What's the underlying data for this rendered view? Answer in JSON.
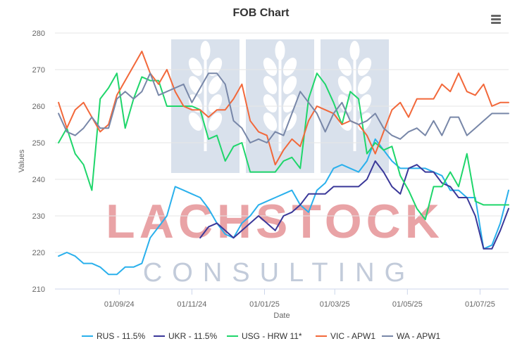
{
  "chart_data": {
    "type": "line",
    "title": "FOB Chart",
    "xlabel": "Date",
    "ylabel": "Values",
    "ylim": [
      210,
      280
    ],
    "yticks": [
      210,
      220,
      230,
      240,
      250,
      260,
      270,
      280
    ],
    "xlim": [
      "2024-07-09",
      "2025-07-25"
    ],
    "xticks": [
      "2024-09-01",
      "2024-11-01",
      "2025-01-01",
      "2025-03-01",
      "2025-05-01",
      "2025-07-01"
    ],
    "xtick_labels": [
      "01/09/24",
      "01/11/24",
      "01/01/25",
      "01/03/25",
      "01/05/25",
      "01/07/25"
    ],
    "grid": "horizontal",
    "legend_position": "bottom",
    "watermark": {
      "line1": "LACHSTOCK",
      "line2": "CONSULTING"
    },
    "series": [
      {
        "name": "RUS - 11.5%",
        "color": "#2ab0ec",
        "points": [
          [
            "2024-07-12",
            219
          ],
          [
            "2024-07-19",
            220
          ],
          [
            "2024-07-26",
            219
          ],
          [
            "2024-08-02",
            217
          ],
          [
            "2024-08-09",
            217
          ],
          [
            "2024-08-16",
            216
          ],
          [
            "2024-08-23",
            214
          ],
          [
            "2024-08-30",
            214
          ],
          [
            "2024-09-06",
            216
          ],
          [
            "2024-09-13",
            216
          ],
          [
            "2024-09-20",
            217
          ],
          [
            "2024-09-27",
            224
          ],
          [
            "2024-10-04",
            227
          ],
          [
            "2024-10-11",
            230
          ],
          [
            "2024-10-18",
            238
          ],
          [
            "2024-10-25",
            237
          ],
          [
            "2024-11-01",
            236
          ],
          [
            "2024-11-08",
            235
          ],
          [
            "2024-11-15",
            232
          ],
          [
            "2024-11-22",
            228
          ],
          [
            "2024-11-29",
            225
          ],
          [
            "2024-12-06",
            224
          ],
          [
            "2024-12-13",
            228
          ],
          [
            "2024-12-20",
            230
          ],
          [
            "2024-12-27",
            233
          ],
          [
            "2025-01-03",
            234
          ],
          [
            "2025-01-10",
            235
          ],
          [
            "2025-01-17",
            236
          ],
          [
            "2025-01-24",
            237
          ],
          [
            "2025-01-31",
            233
          ],
          [
            "2025-02-07",
            231
          ],
          [
            "2025-02-14",
            237
          ],
          [
            "2025-02-21",
            239
          ],
          [
            "2025-02-28",
            243
          ],
          [
            "2025-03-07",
            244
          ],
          [
            "2025-03-14",
            243
          ],
          [
            "2025-03-21",
            242
          ],
          [
            "2025-03-28",
            245
          ],
          [
            "2025-04-04",
            251
          ],
          [
            "2025-04-11",
            248
          ],
          [
            "2025-04-18",
            245
          ],
          [
            "2025-04-25",
            243
          ],
          [
            "2025-05-02",
            243
          ],
          [
            "2025-05-09",
            243
          ],
          [
            "2025-05-16",
            243
          ],
          [
            "2025-05-23",
            242
          ],
          [
            "2025-05-30",
            241
          ],
          [
            "2025-06-06",
            237
          ],
          [
            "2025-06-13",
            237
          ],
          [
            "2025-06-20",
            235
          ],
          [
            "2025-06-27",
            235
          ],
          [
            "2025-07-04",
            221
          ],
          [
            "2025-07-11",
            222
          ],
          [
            "2025-07-18",
            228
          ],
          [
            "2025-07-25",
            237
          ]
        ]
      },
      {
        "name": "UKR - 11.5%",
        "color": "#3a3899",
        "points": [
          [
            "2024-11-08",
            224
          ],
          [
            "2024-11-15",
            227
          ],
          [
            "2024-11-22",
            228
          ],
          [
            "2024-11-29",
            226
          ],
          [
            "2024-12-06",
            224
          ],
          [
            "2024-12-13",
            226
          ],
          [
            "2024-12-20",
            228
          ],
          [
            "2024-12-27",
            230
          ],
          [
            "2025-01-03",
            228
          ],
          [
            "2025-01-10",
            226
          ],
          [
            "2025-01-17",
            230
          ],
          [
            "2025-01-24",
            231
          ],
          [
            "2025-01-31",
            233
          ],
          [
            "2025-02-07",
            236
          ],
          [
            "2025-02-14",
            236
          ],
          [
            "2025-02-21",
            236
          ],
          [
            "2025-02-28",
            238
          ],
          [
            "2025-03-07",
            238
          ],
          [
            "2025-03-14",
            238
          ],
          [
            "2025-03-21",
            238
          ],
          [
            "2025-03-28",
            240
          ],
          [
            "2025-04-04",
            245
          ],
          [
            "2025-04-11",
            242
          ],
          [
            "2025-04-18",
            238
          ],
          [
            "2025-04-25",
            236
          ],
          [
            "2025-05-02",
            243
          ],
          [
            "2025-05-09",
            244
          ],
          [
            "2025-05-16",
            242
          ],
          [
            "2025-05-23",
            242
          ],
          [
            "2025-05-30",
            239
          ],
          [
            "2025-06-06",
            238
          ],
          [
            "2025-06-13",
            235
          ],
          [
            "2025-06-20",
            235
          ],
          [
            "2025-06-27",
            230
          ],
          [
            "2025-07-04",
            221
          ],
          [
            "2025-07-11",
            221
          ],
          [
            "2025-07-18",
            226
          ],
          [
            "2025-07-25",
            232
          ]
        ]
      },
      {
        "name": "USG - HRW 11*",
        "color": "#1fd66b",
        "points": [
          [
            "2024-07-12",
            250
          ],
          [
            "2024-07-19",
            254
          ],
          [
            "2024-07-26",
            247
          ],
          [
            "2024-08-02",
            244
          ],
          [
            "2024-08-09",
            237
          ],
          [
            "2024-08-16",
            262
          ],
          [
            "2024-08-23",
            265
          ],
          [
            "2024-08-30",
            269
          ],
          [
            "2024-09-06",
            254
          ],
          [
            "2024-09-13",
            262
          ],
          [
            "2024-09-20",
            268
          ],
          [
            "2024-09-27",
            267
          ],
          [
            "2024-10-04",
            267
          ],
          [
            "2024-10-11",
            260
          ],
          [
            "2024-10-18",
            260
          ],
          [
            "2024-10-25",
            260
          ],
          [
            "2024-11-01",
            260
          ],
          [
            "2024-11-08",
            259
          ],
          [
            "2024-11-15",
            251
          ],
          [
            "2024-11-22",
            252
          ],
          [
            "2024-11-29",
            245
          ],
          [
            "2024-12-06",
            249
          ],
          [
            "2024-12-13",
            250
          ],
          [
            "2024-12-20",
            242
          ],
          [
            "2024-12-27",
            242
          ],
          [
            "2025-01-03",
            242
          ],
          [
            "2025-01-10",
            242
          ],
          [
            "2025-01-17",
            245
          ],
          [
            "2025-01-24",
            246
          ],
          [
            "2025-01-31",
            243
          ],
          [
            "2025-02-07",
            262
          ],
          [
            "2025-02-14",
            269
          ],
          [
            "2025-02-21",
            266
          ],
          [
            "2025-02-28",
            261
          ],
          [
            "2025-03-07",
            255
          ],
          [
            "2025-03-14",
            264
          ],
          [
            "2025-03-21",
            262
          ],
          [
            "2025-03-28",
            247
          ],
          [
            "2025-04-04",
            250
          ],
          [
            "2025-04-11",
            248
          ],
          [
            "2025-04-18",
            249
          ],
          [
            "2025-04-25",
            241
          ],
          [
            "2025-05-02",
            237
          ],
          [
            "2025-05-09",
            232
          ],
          [
            "2025-05-16",
            229
          ],
          [
            "2025-05-23",
            238
          ],
          [
            "2025-05-30",
            238
          ],
          [
            "2025-06-06",
            242
          ],
          [
            "2025-06-13",
            238
          ],
          [
            "2025-06-20",
            247
          ],
          [
            "2025-06-27",
            234
          ],
          [
            "2025-07-04",
            233
          ],
          [
            "2025-07-11",
            233
          ],
          [
            "2025-07-18",
            233
          ],
          [
            "2025-07-25",
            233
          ]
        ]
      },
      {
        "name": "VIC - APW1",
        "color": "#f2683a",
        "points": [
          [
            "2024-07-12",
            261
          ],
          [
            "2024-07-19",
            254
          ],
          [
            "2024-07-26",
            259
          ],
          [
            "2024-08-02",
            261
          ],
          [
            "2024-08-09",
            257
          ],
          [
            "2024-08-16",
            253
          ],
          [
            "2024-08-23",
            255
          ],
          [
            "2024-08-30",
            263
          ],
          [
            "2024-09-06",
            267
          ],
          [
            "2024-09-13",
            271
          ],
          [
            "2024-09-20",
            275
          ],
          [
            "2024-09-27",
            269
          ],
          [
            "2024-10-04",
            266
          ],
          [
            "2024-10-11",
            270
          ],
          [
            "2024-10-18",
            264
          ],
          [
            "2024-10-25",
            260
          ],
          [
            "2024-11-01",
            259
          ],
          [
            "2024-11-08",
            259
          ],
          [
            "2024-11-15",
            257
          ],
          [
            "2024-11-22",
            259
          ],
          [
            "2024-11-29",
            259
          ],
          [
            "2024-12-06",
            262
          ],
          [
            "2024-12-13",
            266
          ],
          [
            "2024-12-20",
            256
          ],
          [
            "2024-12-27",
            253
          ],
          [
            "2025-01-03",
            252
          ],
          [
            "2025-01-10",
            244
          ],
          [
            "2025-01-17",
            248
          ],
          [
            "2025-01-24",
            251
          ],
          [
            "2025-01-31",
            249
          ],
          [
            "2025-02-07",
            256
          ],
          [
            "2025-02-14",
            260
          ],
          [
            "2025-02-21",
            259
          ],
          [
            "2025-02-28",
            258
          ],
          [
            "2025-03-07",
            255
          ],
          [
            "2025-03-14",
            256
          ],
          [
            "2025-03-21",
            255
          ],
          [
            "2025-03-28",
            252
          ],
          [
            "2025-04-04",
            247
          ],
          [
            "2025-04-11",
            253
          ],
          [
            "2025-04-18",
            259
          ],
          [
            "2025-04-25",
            261
          ],
          [
            "2025-05-02",
            257
          ],
          [
            "2025-05-09",
            262
          ],
          [
            "2025-05-16",
            262
          ],
          [
            "2025-05-23",
            262
          ],
          [
            "2025-05-30",
            266
          ],
          [
            "2025-06-06",
            264
          ],
          [
            "2025-06-13",
            269
          ],
          [
            "2025-06-20",
            264
          ],
          [
            "2025-06-27",
            263
          ],
          [
            "2025-07-04",
            266
          ],
          [
            "2025-07-11",
            260
          ],
          [
            "2025-07-18",
            261
          ],
          [
            "2025-07-25",
            261
          ]
        ]
      },
      {
        "name": "WA - APW1",
        "color": "#7887a8",
        "points": [
          [
            "2024-07-12",
            258
          ],
          [
            "2024-07-19",
            253
          ],
          [
            "2024-07-26",
            252
          ],
          [
            "2024-08-02",
            254
          ],
          [
            "2024-08-09",
            257
          ],
          [
            "2024-08-16",
            254
          ],
          [
            "2024-08-23",
            254
          ],
          [
            "2024-08-30",
            262
          ],
          [
            "2024-09-06",
            264
          ],
          [
            "2024-09-13",
            262
          ],
          [
            "2024-09-20",
            264
          ],
          [
            "2024-09-27",
            269
          ],
          [
            "2024-10-04",
            263
          ],
          [
            "2024-10-11",
            264
          ],
          [
            "2024-10-18",
            265
          ],
          [
            "2024-10-25",
            266
          ],
          [
            "2024-11-01",
            261
          ],
          [
            "2024-11-08",
            265
          ],
          [
            "2024-11-15",
            269
          ],
          [
            "2024-11-22",
            269
          ],
          [
            "2024-11-29",
            266
          ],
          [
            "2024-12-06",
            256
          ],
          [
            "2024-12-13",
            254
          ],
          [
            "2024-12-20",
            250
          ],
          [
            "2024-12-27",
            251
          ],
          [
            "2025-01-03",
            250
          ],
          [
            "2025-01-10",
            253
          ],
          [
            "2025-01-17",
            252
          ],
          [
            "2025-01-24",
            258
          ],
          [
            "2025-01-31",
            264
          ],
          [
            "2025-02-07",
            261
          ],
          [
            "2025-02-14",
            258
          ],
          [
            "2025-02-21",
            253
          ],
          [
            "2025-02-28",
            258
          ],
          [
            "2025-03-07",
            261
          ],
          [
            "2025-03-14",
            256
          ],
          [
            "2025-03-21",
            255
          ],
          [
            "2025-03-28",
            256
          ],
          [
            "2025-04-04",
            258
          ],
          [
            "2025-04-11",
            254
          ],
          [
            "2025-04-18",
            252
          ],
          [
            "2025-04-25",
            251
          ],
          [
            "2025-05-02",
            253
          ],
          [
            "2025-05-09",
            254
          ],
          [
            "2025-05-16",
            252
          ],
          [
            "2025-05-23",
            256
          ],
          [
            "2025-05-30",
            252
          ],
          [
            "2025-06-06",
            257
          ],
          [
            "2025-06-13",
            257
          ],
          [
            "2025-06-20",
            252
          ],
          [
            "2025-06-27",
            254
          ],
          [
            "2025-07-04",
            256
          ],
          [
            "2025-07-11",
            258
          ],
          [
            "2025-07-18",
            258
          ],
          [
            "2025-07-25",
            258
          ]
        ]
      }
    ]
  },
  "menu": {
    "icon": "hamburger-menu-icon"
  }
}
